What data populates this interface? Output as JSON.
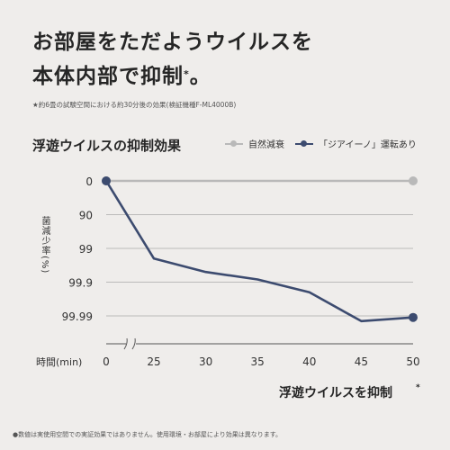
{
  "headline": {
    "line1": "お部屋をただようウイルスを",
    "line2": "本体内部で抑制",
    "mark": "*",
    "line2_end": "。"
  },
  "footnote_top": "★約6畳の試験空間における約30分後の効果(検証機種F-ML4000B)",
  "chart_title": "浮遊ウイルスの抑制効果",
  "legend": {
    "natural": "自然減衰",
    "operation": "「ジアイーノ」運転あり"
  },
  "y_axis_label": "菌減少率(%)",
  "x_axis_label": "時間(min)",
  "x_axis_caption": "浮遊ウイルスを抑制",
  "x_axis_caption_mark": "*",
  "footnote_bottom": "●数値は実使用空間での実証効果ではありません。使用環境・お部屋により効果は異なります。",
  "colors": {
    "background": "#efedeb",
    "natural_series": "#b9b9b9",
    "operation_series": "#3c4b6f",
    "grid": "#aaaaaa"
  },
  "chart_data": {
    "type": "line",
    "title": "浮遊ウイルスの抑制効果",
    "xlabel": "時間(min)",
    "ylabel": "菌減少率(%)",
    "x_tick_labels": [
      "0",
      "25",
      "30",
      "35",
      "40",
      "45",
      "50"
    ],
    "y_tick_labels": [
      "0",
      "90",
      "99",
      "99.9",
      "99.99"
    ],
    "y_scale": "log (reduction %)",
    "x_axis_break": "between 0 and 25",
    "series": [
      {
        "name": "自然減衰",
        "x": [
          0,
          50
        ],
        "y": [
          0,
          0
        ]
      },
      {
        "name": "「ジアイーノ」運転あり",
        "x": [
          0,
          25,
          30,
          35,
          40,
          45,
          50
        ],
        "y": [
          0,
          99.5,
          99.8,
          99.88,
          99.95,
          99.993,
          99.991
        ]
      }
    ],
    "grid": true,
    "legend_position": "top-right"
  }
}
